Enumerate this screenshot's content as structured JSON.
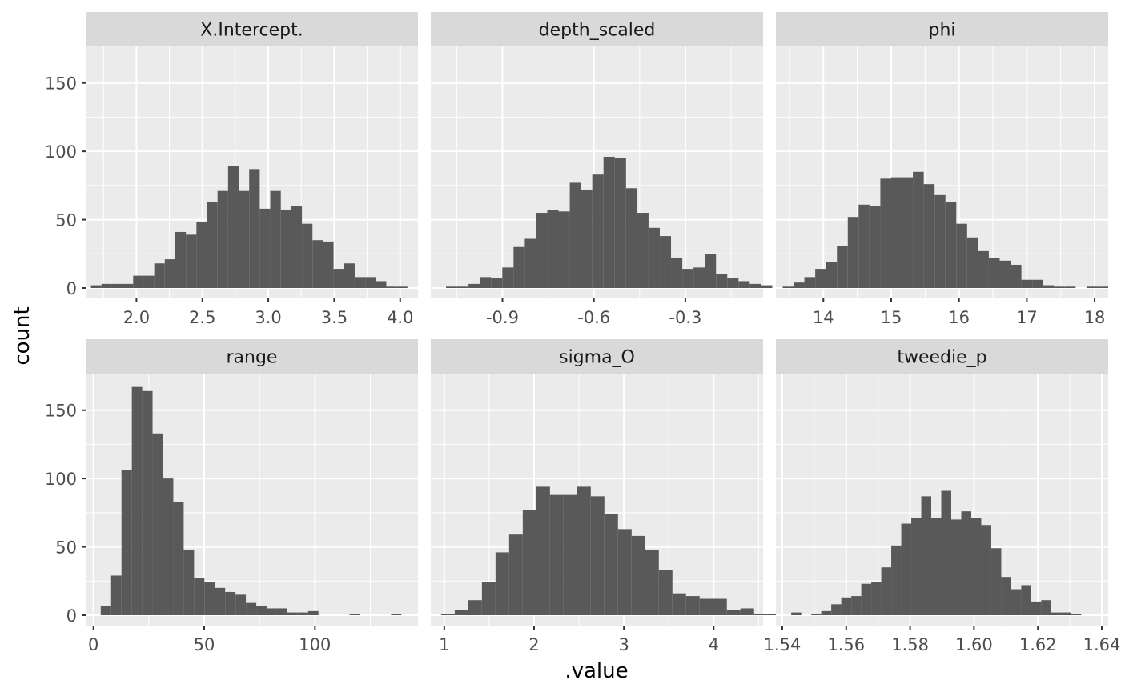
{
  "chart_data": {
    "type": "bar",
    "layout": "facet_wrap 2 rows x 3 columns, free x scales, shared y scale",
    "xlabel": ".value",
    "ylabel": "count",
    "ylim": [
      0,
      175
    ],
    "y_ticks": [
      0,
      50,
      100,
      150
    ],
    "grid": true,
    "panels": [
      {
        "title": "X.Intercept.",
        "xlim": [
          1.615,
          4.135
        ],
        "x_ticks": [
          2.0,
          2.5,
          3.0,
          3.5,
          4.0
        ],
        "x_tick_labels": [
          "2.0",
          "2.5",
          "3.0",
          "3.5",
          "4.0"
        ],
        "bin_start": 1.655,
        "bin_width": 0.08,
        "counts": [
          2,
          3,
          3,
          3,
          9,
          9,
          18,
          21,
          41,
          39,
          48,
          63,
          71,
          89,
          71,
          87,
          58,
          71,
          57,
          60,
          47,
          35,
          34,
          14,
          18,
          8,
          8,
          5,
          1,
          1
        ]
      },
      {
        "title": "depth_scaled",
        "xlim": [
          -1.135,
          -0.045
        ],
        "x_ticks": [
          -0.9,
          -0.6,
          -0.3
        ],
        "x_tick_labels": [
          "-0.9",
          "-0.6",
          "-0.3"
        ],
        "bin_start": -1.085,
        "bin_width": 0.0369,
        "counts": [
          1,
          1,
          3,
          8,
          7,
          15,
          30,
          36,
          55,
          57,
          56,
          77,
          72,
          83,
          96,
          95,
          73,
          55,
          44,
          38,
          22,
          14,
          15,
          25,
          10,
          7,
          5,
          3,
          2,
          0,
          1
        ]
      },
      {
        "title": "phi",
        "xlim": [
          13.3,
          18.2
        ],
        "x_ticks": [
          14,
          15,
          16,
          17,
          18
        ],
        "x_tick_labels": [
          "14",
          "15",
          "16",
          "17",
          "18"
        ],
        "bin_start": 13.4,
        "bin_width": 0.16,
        "counts": [
          1,
          4,
          8,
          14,
          19,
          31,
          52,
          61,
          60,
          80,
          81,
          81,
          85,
          76,
          68,
          63,
          47,
          37,
          27,
          22,
          20,
          17,
          6,
          6,
          2,
          1,
          1,
          0,
          1,
          1
        ]
      },
      {
        "title": "range",
        "xlim": [
          -3.5,
          146.5
        ],
        "x_ticks": [
          0,
          50,
          100
        ],
        "x_tick_labels": [
          "0",
          "50",
          "100"
        ],
        "bin_start": 3.3,
        "bin_width": 4.68,
        "counts": [
          7,
          29,
          106,
          167,
          164,
          133,
          100,
          83,
          48,
          27,
          24,
          20,
          17,
          15,
          9,
          7,
          5,
          5,
          2,
          2,
          3,
          0,
          0,
          0,
          1,
          0,
          0,
          0,
          1
        ]
      },
      {
        "title": "sigma_O",
        "xlim": [
          0.85,
          4.55
        ],
        "x_ticks": [
          1,
          2,
          3,
          4
        ],
        "x_tick_labels": [
          "1",
          "2",
          "3",
          "4"
        ],
        "bin_start": 0.965,
        "bin_width": 0.1515,
        "counts": [
          1,
          4,
          11,
          24,
          46,
          59,
          77,
          94,
          88,
          88,
          94,
          87,
          74,
          63,
          58,
          48,
          33,
          16,
          14,
          12,
          12,
          4,
          5,
          1,
          1,
          1,
          1,
          1,
          0,
          1
        ]
      },
      {
        "title": "tweedie_p",
        "xlim": [
          1.538,
          1.642
        ],
        "x_ticks": [
          1.54,
          1.56,
          1.58,
          1.6,
          1.62,
          1.64
        ],
        "x_tick_labels": [
          "1.54",
          "1.56",
          "1.58",
          "1.60",
          "1.62",
          "1.64"
        ],
        "bin_start": 1.5428,
        "bin_width": 0.00313,
        "counts": [
          2,
          0,
          1,
          3,
          8,
          13,
          14,
          23,
          24,
          35,
          51,
          67,
          71,
          87,
          71,
          91,
          70,
          76,
          71,
          66,
          49,
          28,
          19,
          22,
          10,
          11,
          2,
          2,
          1
        ]
      }
    ]
  }
}
